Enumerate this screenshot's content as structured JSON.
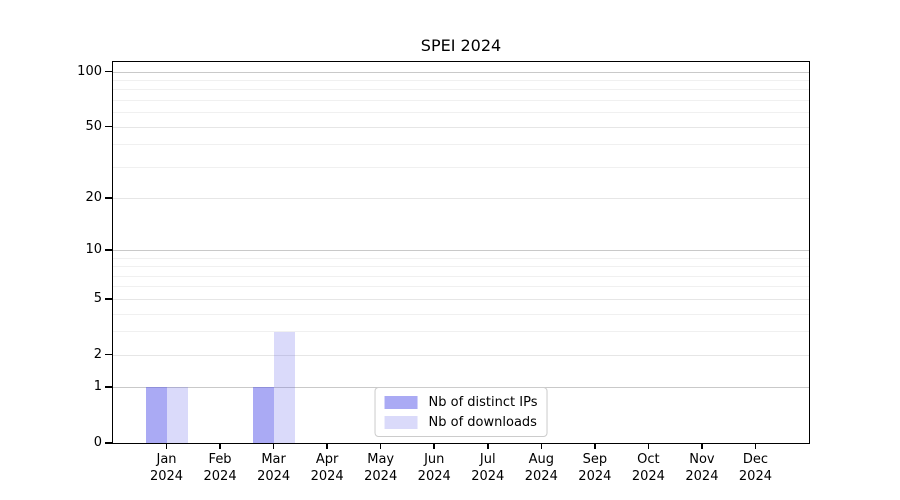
{
  "chart_data": {
    "type": "bar",
    "title": "SPEI 2024",
    "xlabel": "",
    "ylabel": "",
    "year_label": "2024",
    "categories": [
      "Jan",
      "Feb",
      "Mar",
      "Apr",
      "May",
      "Jun",
      "Jul",
      "Aug",
      "Sep",
      "Oct",
      "Nov",
      "Dec"
    ],
    "series": [
      {
        "key": "distinct-ips",
        "name": "Nb of distinct IPs",
        "color": "rgba(85,85,233,0.50)",
        "values": [
          1,
          0,
          1,
          0,
          0,
          0,
          0,
          0,
          0,
          0,
          0,
          0
        ]
      },
      {
        "key": "downloads",
        "name": "Nb of downloads",
        "color": "rgba(85,85,233,0.22)",
        "values": [
          1,
          0,
          3,
          0,
          0,
          0,
          0,
          0,
          0,
          0,
          0,
          0
        ]
      }
    ],
    "y_axis": {
      "scale": "log1p",
      "ticks": [
        0,
        1,
        2,
        5,
        10,
        20,
        50,
        100
      ],
      "top_value": 113,
      "major_gridlines": [
        1,
        10,
        100
      ],
      "mid_gridlines": [
        2,
        5,
        20,
        50
      ],
      "minor_gridlines": [
        3,
        4,
        6,
        7,
        8,
        9,
        30,
        40,
        60,
        70,
        80,
        90
      ]
    },
    "grid": true,
    "legend_position": "lower center",
    "colors": {
      "grid_major": "#c9c9c9",
      "grid_mid": "#e6e6e6",
      "grid_minor": "#f0f0f0",
      "spine": "#000000",
      "background": "#ffffff"
    }
  }
}
